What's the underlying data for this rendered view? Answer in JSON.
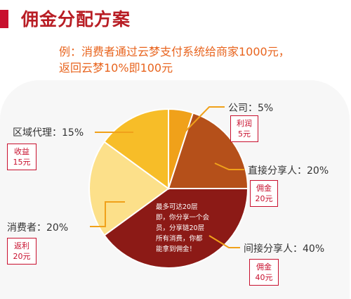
{
  "header": {
    "title": "佣金分配方案",
    "subtitle_line1": "例：消费者通过云梦支付系统给商家1000元，",
    "subtitle_line2": "返回云梦10%即100元"
  },
  "colors": {
    "accent": "#c8102e",
    "subtitle": "#e8641e",
    "company": "#f0a11a",
    "direct_sharer": "#b5501a",
    "indirect_sharer": "#8c1a16",
    "consumer": "#fce08a",
    "regional_agent": "#f7bd28"
  },
  "chart_data": {
    "type": "pie",
    "title": "",
    "slices": [
      {
        "label": "公司：5%",
        "name": "公司",
        "value": 5,
        "tag_line1": "利润",
        "tag_line2": "5元"
      },
      {
        "label": "直接分享人：20%",
        "name": "直接分享人",
        "value": 20,
        "tag_line1": "佣金",
        "tag_line2": "20元"
      },
      {
        "label": "间接分享人：40%",
        "name": "间接分享人",
        "value": 40,
        "tag_line1": "佣金",
        "tag_line2": "40元"
      },
      {
        "label": "消费者：20%",
        "name": "消费者",
        "value": 20,
        "tag_line1": "返利",
        "tag_line2": "20元"
      },
      {
        "label": "区域代理：15%",
        "name": "区域代理",
        "value": 15,
        "tag_line1": "收益",
        "tag_line2": "15元"
      }
    ],
    "annotation": {
      "line1": "最多可达20层",
      "line2": "即，你分享一个会",
      "line3": "员，分享链20层",
      "line4": "所有消费，你都",
      "line5": "能拿到佣金！"
    }
  }
}
